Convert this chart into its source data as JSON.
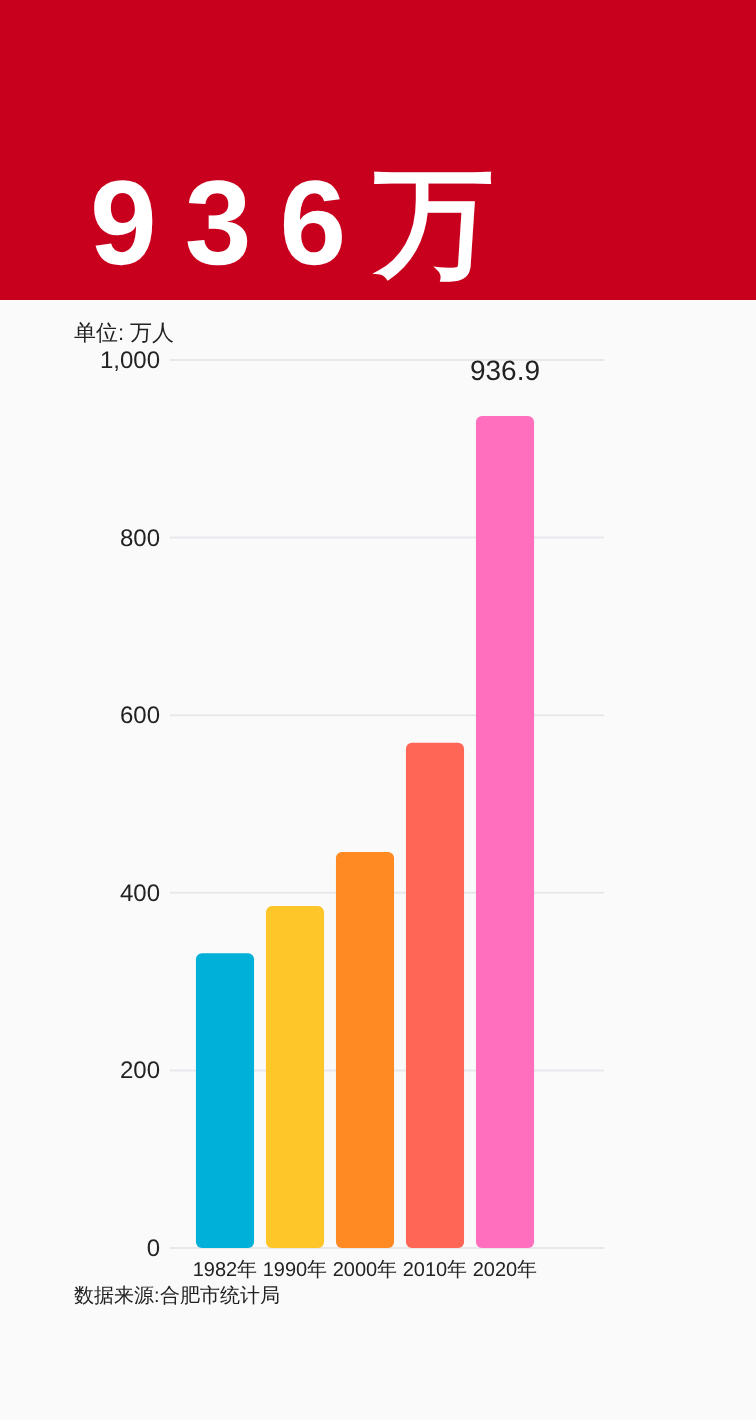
{
  "chart_data": {
    "type": "bar",
    "title": "936万",
    "ylabel": "单位: 万人",
    "categories": [
      "1982年",
      "1990年",
      "2000年",
      "2010年",
      "2020年"
    ],
    "values": [
      332,
      385,
      446,
      569,
      936.9
    ],
    "colors": [
      "#00b0d8",
      "#ffc629",
      "#ff8a24",
      "#ff6655",
      "#ff6fbd"
    ],
    "value_labels": [
      null,
      null,
      null,
      null,
      "936.9"
    ],
    "ylim": [
      0,
      1000
    ],
    "yticks": [
      0,
      200,
      400,
      600,
      800,
      {
        "value": 1000,
        "label": "1,000"
      }
    ],
    "grid": "y",
    "annotations": [
      "数据来源:合肥市统计局"
    ]
  }
}
